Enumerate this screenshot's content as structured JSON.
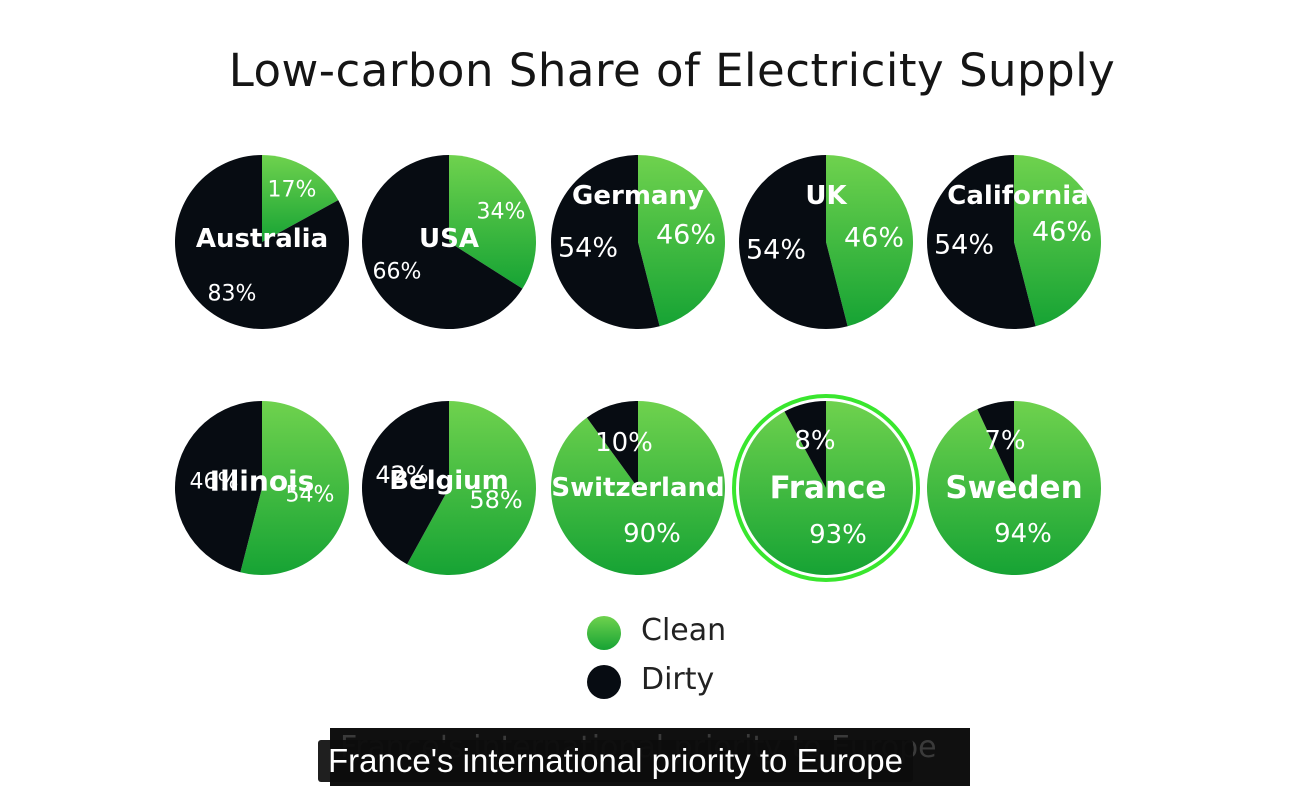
{
  "chart_data": {
    "type": "pie",
    "title": "Low-carbon Share of Electricity Supply",
    "legend": [
      {
        "name": "Clean",
        "color": "#4cc23c"
      },
      {
        "name": "Dirty",
        "color": "#070c12"
      }
    ],
    "legend_placement": "bottom",
    "highlighted": "France",
    "pies": [
      {
        "name": "Australia",
        "clean": 17,
        "dirty": 83,
        "clean_label": "17%",
        "dirty_label": "83%"
      },
      {
        "name": "USA",
        "clean": 34,
        "dirty": 66,
        "clean_label": "34%",
        "dirty_label": "66%"
      },
      {
        "name": "Germany",
        "clean": 46,
        "dirty": 54,
        "clean_label": "46%",
        "dirty_label": "54%"
      },
      {
        "name": "UK",
        "clean": 46,
        "dirty": 54,
        "clean_label": "46%",
        "dirty_label": "54%"
      },
      {
        "name": "California",
        "clean": 46,
        "dirty": 54,
        "clean_label": "46%",
        "dirty_label": "54%"
      },
      {
        "name": "Illinois",
        "clean": 54,
        "dirty": 46,
        "clean_label": "54%",
        "dirty_label": "46%"
      },
      {
        "name": "Belgium",
        "clean": 58,
        "dirty": 42,
        "clean_label": "58%",
        "dirty_label": "42%"
      },
      {
        "name": "Switzerland",
        "clean": 90,
        "dirty": 10,
        "clean_label": "90%",
        "dirty_label": "10%"
      },
      {
        "name": "France",
        "clean": 93,
        "dirty": 8,
        "clean_label": "93%",
        "dirty_label": "8%"
      },
      {
        "name": "Sweden",
        "clean": 94,
        "dirty": 7,
        "clean_label": "94%",
        "dirty_label": "7%"
      }
    ]
  },
  "colors": {
    "clean_light": "#6fd24e",
    "clean_dark": "#16a334",
    "dirty": "#070c12",
    "highlight_ring": "#39e62e"
  },
  "captions": {
    "ghost": "France's international priority to Europe",
    "subtitle": "France's international priority to Europe"
  }
}
